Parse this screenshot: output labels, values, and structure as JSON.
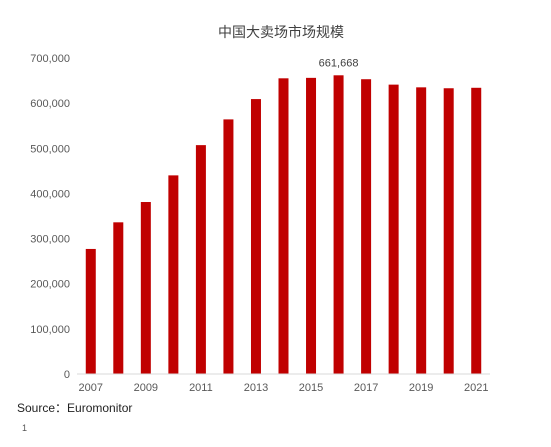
{
  "chart_data": {
    "type": "bar",
    "title": "中国大卖场市场规模",
    "xlabel": "",
    "ylabel": "",
    "categories": [
      "2007",
      "2008",
      "2009",
      "2010",
      "2011",
      "2012",
      "2013",
      "2014",
      "2015",
      "2016",
      "2017",
      "2018",
      "2019",
      "2020",
      "2021"
    ],
    "values": [
      277000,
      336000,
      381000,
      440000,
      507000,
      564000,
      609000,
      655000,
      656000,
      661668,
      653000,
      641000,
      635000,
      633000,
      634000
    ],
    "x_tick_labels": [
      "2007",
      "2009",
      "2011",
      "2013",
      "2015",
      "2017",
      "2019",
      "2021"
    ],
    "y_ticks": [
      0,
      100000,
      200000,
      300000,
      400000,
      500000,
      600000,
      700000
    ],
    "y_tick_labels": [
      "0",
      "100,000",
      "200,000",
      "300,000",
      "400,000",
      "500,000",
      "600,000",
      "700,000"
    ],
    "ylim": [
      0,
      700000
    ],
    "grid": false,
    "legend": "none",
    "bar_color": "#c00000",
    "annotations": [
      {
        "category": "2016",
        "text": "661,668"
      }
    ]
  },
  "footer": {
    "source": "Source：Euromonitor",
    "page_number": "1"
  }
}
